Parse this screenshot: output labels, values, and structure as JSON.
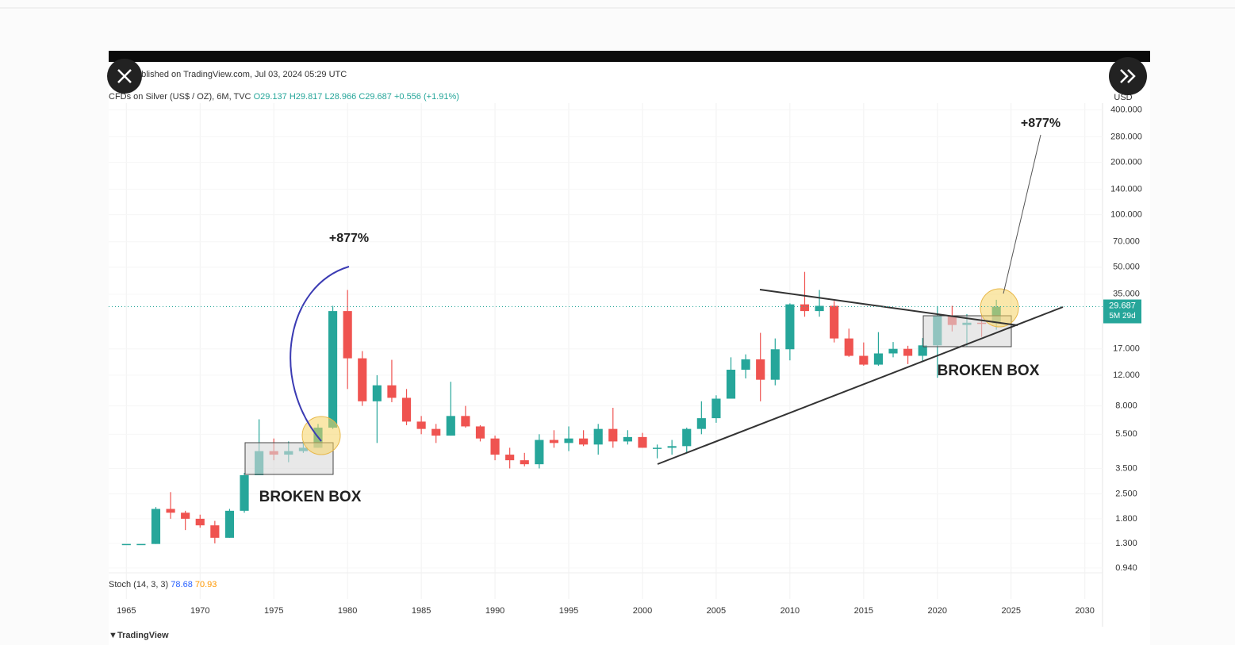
{
  "header": {
    "published": "ublished on TradingView.com, Jul 03, 2024 05:29 UTC",
    "symbol": "CFDs on Silver (US$ / OZ), 6M, TVC",
    "ohlc": [
      "O29.137",
      "H29.817",
      "L28.966",
      "C29.687",
      "+0.556 (+1.91%)"
    ],
    "currency": "USD"
  },
  "footer": {
    "brand": "TradingView"
  },
  "indicator": {
    "name": "Stoch (14, 3, 3)",
    "values": [
      78.68,
      70.93
    ],
    "colors": [
      "#2962ff",
      "#ff9800"
    ]
  },
  "chart_data": {
    "type": "candlestick",
    "log_scale": true,
    "grid": true,
    "up_color": "#26a69a",
    "down_color": "#ef5350",
    "x": [
      1965,
      1966,
      1967,
      1968,
      1969,
      1970,
      1971,
      1972,
      1973,
      1974,
      1975,
      1976,
      1977,
      1978,
      1979,
      1980,
      1981,
      1982,
      1983,
      1984,
      1985,
      1986,
      1987,
      1988,
      1989,
      1990,
      1991,
      1992,
      1993,
      1994,
      1995,
      1996,
      1997,
      1998,
      1999,
      2000,
      2001,
      2002,
      2003,
      2004,
      2005,
      2006,
      2007,
      2008,
      2009,
      2010,
      2011,
      2012,
      2013,
      2014,
      2015,
      2016,
      2017,
      2018,
      2019,
      2020,
      2021,
      2022,
      2023,
      2024
    ],
    "open": [
      1.29,
      1.29,
      1.29,
      2.05,
      1.95,
      1.8,
      1.65,
      1.4,
      2.0,
      3.2,
      4.4,
      4.2,
      4.4,
      4.6,
      6.0,
      28,
      15,
      8.5,
      10.5,
      8.9,
      6.5,
      5.9,
      5.4,
      7.0,
      6.1,
      5.2,
      4.2,
      3.9,
      3.7,
      5.1,
      4.9,
      5.2,
      4.8,
      5.9,
      5.0,
      5.3,
      4.6,
      4.6,
      4.7,
      5.9,
      6.8,
      8.8,
      12.9,
      14.8,
      11.3,
      16.9,
      30.6,
      28,
      30,
      19.5,
      15.5,
      13.8,
      16,
      17,
      15.5,
      17.8,
      26.4,
      23.3,
      24,
      23.8
    ],
    "high": [
      1.29,
      1.29,
      2.1,
      2.56,
      2.0,
      1.9,
      1.75,
      2.05,
      3.3,
      6.7,
      5.2,
      5.0,
      5.0,
      6.3,
      30,
      37,
      16.5,
      12,
      14.7,
      10,
      7,
      6.3,
      11,
      8,
      6.2,
      5.4,
      4.6,
      4.3,
      5.5,
      5.8,
      6.1,
      5.8,
      6.3,
      7.8,
      5.8,
      5.6,
      4.8,
      5.1,
      6.0,
      8.5,
      9.2,
      15.2,
      15.8,
      21,
      19.5,
      31,
      47,
      37,
      32,
      22.2,
      18.5,
      21.2,
      18.6,
      17.7,
      19.6,
      29.9,
      30,
      26.9,
      26.1,
      32.5
    ],
    "low": [
      1.29,
      1.29,
      1.29,
      1.8,
      1.55,
      1.6,
      1.3,
      1.4,
      1.95,
      3.2,
      3.9,
      3.8,
      4.3,
      4.6,
      5.9,
      10,
      8,
      4.9,
      8.4,
      6.2,
      5.5,
      4.9,
      5.4,
      6,
      5,
      3.9,
      3.5,
      3.6,
      3.5,
      4.6,
      4.4,
      4.7,
      4.2,
      4.6,
      4.8,
      4.6,
      4.0,
      4.2,
      4.3,
      5.5,
      6.4,
      8.8,
      11.5,
      8.5,
      10.5,
      14.6,
      26,
      26,
      18.5,
      15.3,
      13.6,
      13.6,
      15.2,
      13.9,
      14.3,
      11.6,
      21.4,
      17.5,
      19.9,
      21.9
    ],
    "close": [
      1.29,
      1.29,
      2.05,
      1.95,
      1.8,
      1.65,
      1.4,
      2.0,
      3.2,
      4.4,
      4.2,
      4.4,
      4.6,
      6.0,
      28,
      15,
      8.5,
      10.5,
      8.9,
      6.5,
      5.9,
      5.4,
      7.0,
      6.1,
      5.2,
      4.2,
      3.9,
      3.7,
      5.1,
      4.9,
      5.2,
      4.8,
      5.9,
      5.0,
      5.3,
      4.6,
      4.6,
      4.7,
      5.9,
      6.8,
      8.8,
      12.9,
      14.8,
      11.3,
      16.9,
      30.6,
      28,
      30,
      19.5,
      15.5,
      13.8,
      16,
      17,
      15.5,
      17.8,
      26.4,
      23.3,
      24,
      23.8,
      29.687
    ],
    "xlim": [
      1963.8,
      2031.2
    ],
    "xticks": [
      1965,
      1970,
      1975,
      1980,
      1985,
      1990,
      1995,
      2000,
      2005,
      2010,
      2015,
      2020,
      2025,
      2030
    ],
    "ylim": [
      0.9,
      437
    ],
    "yticks": [
      {
        "value": 0.94,
        "label": "0.940"
      },
      {
        "value": 1.3,
        "label": "1.300"
      },
      {
        "value": 1.8,
        "label": "1.800"
      },
      {
        "value": 2.5,
        "label": "2.500"
      },
      {
        "value": 3.5,
        "label": "3.500"
      },
      {
        "value": 5.5,
        "label": "5.500"
      },
      {
        "value": 8,
        "label": "8.000"
      },
      {
        "value": 12,
        "label": "12.000"
      },
      {
        "value": 17,
        "label": "17.000"
      },
      {
        "value": 35,
        "label": "35.000"
      },
      {
        "value": 50,
        "label": "50.000"
      },
      {
        "value": 70,
        "label": "70.000"
      },
      {
        "value": 100,
        "label": "100.000"
      },
      {
        "value": 140,
        "label": "140.000"
      },
      {
        "value": 200,
        "label": "200.000"
      },
      {
        "value": 280,
        "label": "280.000"
      },
      {
        "value": 400,
        "label": "400.000"
      }
    ],
    "last_price": 29.687,
    "countdown": "5M 29d",
    "annotations": [
      "+877%",
      "+877%",
      "BROKEN BOX",
      "BROKEN BOX"
    ]
  }
}
